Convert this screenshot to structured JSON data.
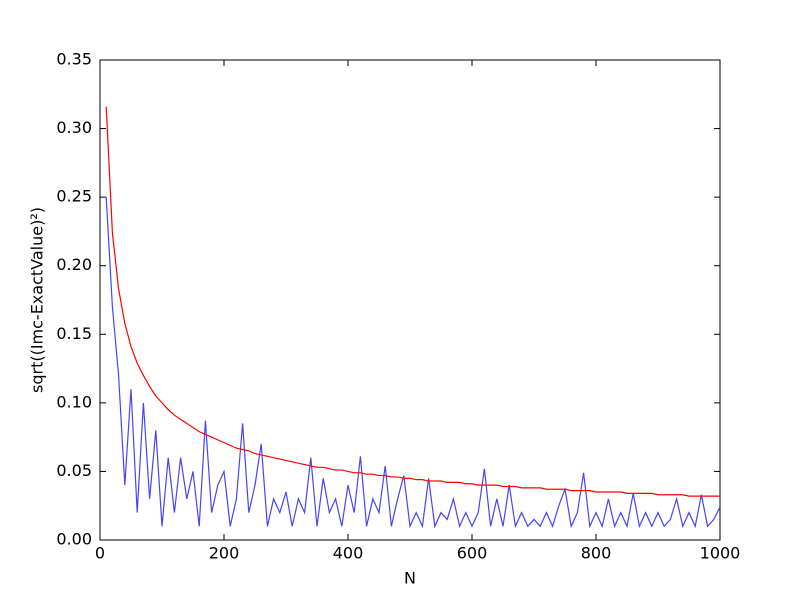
{
  "chart_data": {
    "type": "line",
    "xlabel": "N",
    "ylabel": "sqrt((Imc-ExactValue)²)",
    "x": [
      10,
      20,
      30,
      40,
      50,
      60,
      70,
      80,
      90,
      100,
      110,
      120,
      130,
      140,
      150,
      160,
      170,
      180,
      190,
      200,
      210,
      220,
      230,
      240,
      250,
      260,
      270,
      280,
      290,
      300,
      310,
      320,
      330,
      340,
      350,
      360,
      370,
      380,
      390,
      400,
      410,
      420,
      430,
      440,
      450,
      460,
      470,
      480,
      490,
      500,
      510,
      520,
      530,
      540,
      550,
      560,
      570,
      580,
      590,
      600,
      610,
      620,
      630,
      640,
      650,
      660,
      670,
      680,
      690,
      700,
      710,
      720,
      730,
      740,
      750,
      760,
      770,
      780,
      790,
      800,
      810,
      820,
      830,
      840,
      850,
      860,
      870,
      880,
      890,
      900,
      910,
      920,
      930,
      940,
      950,
      960,
      970,
      980,
      990,
      1000
    ],
    "series": [
      {
        "color": "#4444ff",
        "values": [
          0.25,
          0.17,
          0.12,
          0.04,
          0.11,
          0.02,
          0.1,
          0.03,
          0.08,
          0.01,
          0.06,
          0.02,
          0.06,
          0.03,
          0.05,
          0.01,
          0.087,
          0.02,
          0.04,
          0.05,
          0.01,
          0.03,
          0.085,
          0.02,
          0.04,
          0.07,
          0.01,
          0.03,
          0.02,
          0.035,
          0.01,
          0.03,
          0.02,
          0.06,
          0.01,
          0.045,
          0.02,
          0.03,
          0.01,
          0.04,
          0.02,
          0.061,
          0.01,
          0.03,
          0.02,
          0.054,
          0.01,
          0.03,
          0.047,
          0.01,
          0.02,
          0.01,
          0.045,
          0.01,
          0.02,
          0.015,
          0.03,
          0.01,
          0.02,
          0.01,
          0.02,
          0.052,
          0.01,
          0.03,
          0.01,
          0.04,
          0.01,
          0.02,
          0.01,
          0.015,
          0.01,
          0.02,
          0.01,
          0.025,
          0.037,
          0.01,
          0.02,
          0.049,
          0.01,
          0.02,
          0.01,
          0.03,
          0.01,
          0.02,
          0.01,
          0.034,
          0.01,
          0.02,
          0.01,
          0.02,
          0.01,
          0.015,
          0.03,
          0.01,
          0.02,
          0.01,
          0.033,
          0.01,
          0.015,
          0.024
        ]
      },
      {
        "color": "#ff0000",
        "values": [
          0.316,
          0.224,
          0.183,
          0.158,
          0.141,
          0.129,
          0.12,
          0.112,
          0.105,
          0.1,
          0.095,
          0.091,
          0.088,
          0.085,
          0.082,
          0.079,
          0.077,
          0.075,
          0.073,
          0.071,
          0.069,
          0.067,
          0.066,
          0.065,
          0.063,
          0.062,
          0.061,
          0.06,
          0.059,
          0.058,
          0.057,
          0.056,
          0.055,
          0.054,
          0.053,
          0.053,
          0.052,
          0.051,
          0.051,
          0.05,
          0.049,
          0.049,
          0.048,
          0.048,
          0.047,
          0.047,
          0.046,
          0.046,
          0.045,
          0.045,
          0.044,
          0.044,
          0.043,
          0.043,
          0.043,
          0.042,
          0.042,
          0.042,
          0.041,
          0.041,
          0.04,
          0.04,
          0.04,
          0.04,
          0.039,
          0.039,
          0.039,
          0.038,
          0.038,
          0.038,
          0.038,
          0.037,
          0.037,
          0.037,
          0.037,
          0.036,
          0.036,
          0.036,
          0.036,
          0.035,
          0.035,
          0.035,
          0.035,
          0.035,
          0.034,
          0.034,
          0.034,
          0.034,
          0.034,
          0.033,
          0.033,
          0.033,
          0.033,
          0.033,
          0.032,
          0.032,
          0.032,
          0.032,
          0.032,
          0.032
        ]
      }
    ],
    "xlim": [
      0,
      1000
    ],
    "xticks": [
      0,
      200,
      400,
      600,
      800,
      1000
    ],
    "ylim": [
      0,
      0.35
    ],
    "yticks": [
      {
        "value": 0,
        "label": "0.00"
      },
      {
        "value": 0.05,
        "label": "0.05"
      },
      {
        "value": 0.1,
        "label": "0.10"
      },
      {
        "value": 0.15,
        "label": "0.15"
      },
      {
        "value": 0.2,
        "label": "0.20"
      },
      {
        "value": 0.25,
        "label": "0.25"
      },
      {
        "value": 0.3,
        "label": "0.30"
      },
      {
        "value": 0.35,
        "label": "0.35"
      }
    ]
  }
}
